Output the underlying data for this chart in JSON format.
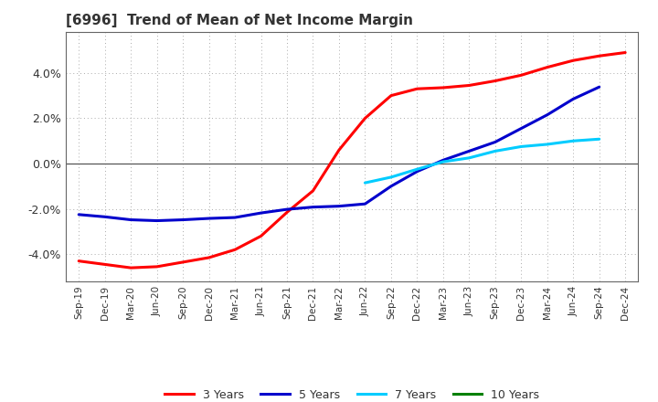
{
  "title": "[6996]  Trend of Mean of Net Income Margin",
  "title_fontsize": 11,
  "title_color": "#333333",
  "background_color": "#ffffff",
  "plot_bg_color": "#ffffff",
  "ylim": [
    -0.052,
    0.058
  ],
  "yticks": [
    -0.04,
    -0.02,
    0.0,
    0.02,
    0.04
  ],
  "ytick_labels": [
    "-4.0%",
    "-2.0%",
    "0.0%",
    "2.0%",
    "4.0%"
  ],
  "x_labels": [
    "Sep-19",
    "Dec-19",
    "Mar-20",
    "Jun-20",
    "Sep-20",
    "Dec-20",
    "Mar-21",
    "Jun-21",
    "Sep-21",
    "Dec-21",
    "Mar-22",
    "Jun-22",
    "Sep-22",
    "Dec-22",
    "Mar-23",
    "Jun-23",
    "Sep-23",
    "Dec-23",
    "Mar-24",
    "Jun-24",
    "Sep-24",
    "Dec-24"
  ],
  "series_order": [
    "3 Years",
    "5 Years",
    "7 Years",
    "10 Years"
  ],
  "series": {
    "3 Years": {
      "color": "#ff0000",
      "linewidth": 2.2,
      "data": [
        -0.043,
        -0.0445,
        -0.046,
        -0.0455,
        -0.0435,
        -0.0415,
        -0.038,
        -0.032,
        -0.0215,
        -0.012,
        0.006,
        0.02,
        0.03,
        0.033,
        0.0335,
        0.0345,
        0.0365,
        0.039,
        0.0425,
        0.0455,
        0.0475,
        0.049
      ]
    },
    "5 Years": {
      "color": "#0000cc",
      "linewidth": 2.2,
      "data": [
        -0.0225,
        -0.0235,
        -0.0248,
        -0.0252,
        -0.0248,
        -0.0242,
        -0.0238,
        -0.0218,
        -0.0202,
        -0.0192,
        -0.0188,
        -0.0178,
        -0.01,
        -0.0035,
        0.0015,
        0.0055,
        0.0095,
        0.0155,
        0.0215,
        0.0285,
        0.0338,
        null
      ]
    },
    "7 Years": {
      "color": "#00ccff",
      "linewidth": 2.2,
      "data": [
        null,
        null,
        null,
        null,
        null,
        null,
        null,
        null,
        null,
        null,
        null,
        -0.0085,
        -0.006,
        -0.0025,
        0.0008,
        0.0025,
        0.0055,
        0.0075,
        0.0085,
        0.01,
        0.0108,
        null
      ]
    },
    "10 Years": {
      "color": "#008000",
      "linewidth": 2.2,
      "data": [
        null,
        null,
        null,
        null,
        null,
        null,
        null,
        null,
        null,
        null,
        null,
        null,
        null,
        null,
        null,
        null,
        null,
        null,
        null,
        null,
        null,
        null
      ]
    }
  },
  "legend_labels": [
    "3 Years",
    "5 Years",
    "7 Years",
    "10 Years"
  ],
  "legend_colors": [
    "#ff0000",
    "#0000cc",
    "#00ccff",
    "#008000"
  ],
  "grid_color": "#aaaaaa",
  "grid_linestyle": "dotted",
  "spine_color": "#666666",
  "zero_line_color": "#555555"
}
